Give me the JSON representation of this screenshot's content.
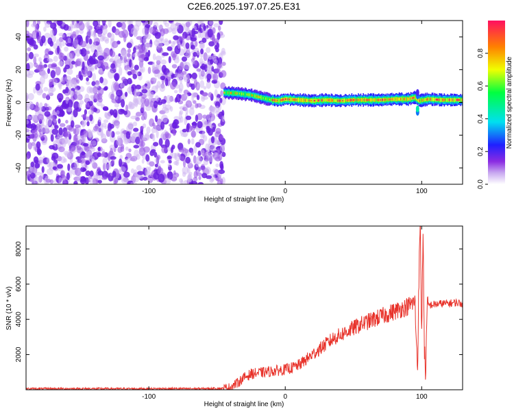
{
  "title": "C2E6.2025.197.07.25.E31",
  "chart_data": [
    {
      "type": "heatmap",
      "xlabel": "Height of straight line (km)",
      "ylabel": "Frequency (Hz)",
      "xlim": [
        -190,
        130
      ],
      "ylim": [
        -50,
        50
      ],
      "xticks": [
        -100,
        0,
        100
      ],
      "yticks": [
        -40,
        -20,
        0,
        20,
        40
      ],
      "colorbar": {
        "label": "Normalized spectral amplitude",
        "range": [
          0,
          1
        ],
        "ticks": [
          0.0,
          0.2,
          0.4,
          0.6,
          0.8
        ]
      },
      "noise_region": {
        "x": [
          -190,
          -45
        ],
        "y": [
          -50,
          50
        ],
        "amplitude": [
          0.05,
          0.25
        ]
      },
      "signal_track": [
        {
          "x": -45,
          "y": 6
        },
        {
          "x": -35,
          "y": 5.5
        },
        {
          "x": -25,
          "y": 4.5
        },
        {
          "x": -18,
          "y": 3
        },
        {
          "x": -10,
          "y": 1.5
        },
        {
          "x": -5,
          "y": 1
        },
        {
          "x": 0,
          "y": 2
        },
        {
          "x": 10,
          "y": 1.5
        },
        {
          "x": 20,
          "y": 1
        },
        {
          "x": 30,
          "y": 1.5
        },
        {
          "x": 40,
          "y": 1
        },
        {
          "x": 50,
          "y": 1.5
        },
        {
          "x": 60,
          "y": 1.5
        },
        {
          "x": 70,
          "y": 1.5
        },
        {
          "x": 80,
          "y": 2
        },
        {
          "x": 90,
          "y": 2
        },
        {
          "x": 95,
          "y": 3
        },
        {
          "x": 98,
          "y": 1
        },
        {
          "x": 105,
          "y": 2
        },
        {
          "x": 115,
          "y": 1.5
        },
        {
          "x": 130,
          "y": 1.5
        }
      ]
    },
    {
      "type": "line",
      "xlabel": "Height of straight line (km)",
      "ylabel": "SNR (10 * v/v)",
      "xlim": [
        -190,
        130
      ],
      "ylim": [
        0,
        9300
      ],
      "xticks": [
        -100,
        0,
        100
      ],
      "yticks": [
        2000,
        4000,
        6000,
        8000
      ],
      "series": [
        {
          "color": "#e8322a",
          "x": [
            -190,
            -150,
            -100,
            -60,
            -45,
            -40,
            -35,
            -30,
            -25,
            -20,
            -15,
            -10,
            -5,
            0,
            5,
            10,
            15,
            20,
            25,
            30,
            35,
            40,
            45,
            50,
            55,
            60,
            65,
            70,
            75,
            80,
            85,
            90,
            93,
            95,
            97,
            98,
            99,
            100,
            101,
            102,
            103,
            104,
            105,
            110,
            115,
            120,
            125,
            130
          ],
          "y": [
            60,
            60,
            60,
            60,
            80,
            150,
            400,
            700,
            900,
            950,
            1000,
            1050,
            1100,
            1150,
            1250,
            1400,
            1700,
            2000,
            2300,
            2600,
            2900,
            3100,
            3300,
            3500,
            3700,
            3850,
            4000,
            4150,
            4300,
            4450,
            4600,
            4750,
            4900,
            5000,
            1200,
            6500,
            9300,
            3000,
            9300,
            2000,
            1000,
            4500,
            4800,
            4850,
            4900,
            4900,
            4950,
            4900
          ]
        }
      ]
    }
  ]
}
